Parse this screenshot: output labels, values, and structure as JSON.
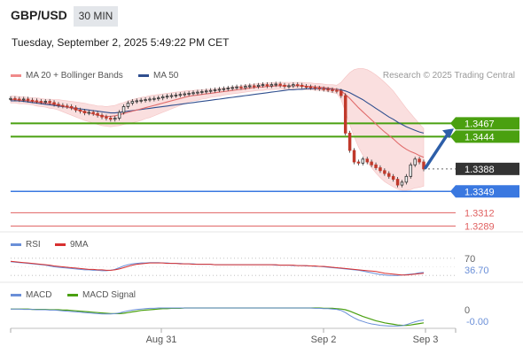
{
  "header": {
    "pair": "GBP/USD",
    "timeframe": "30 MIN",
    "timestamp": "Tuesday, September 2, 2025 5:49:22 PM CET"
  },
  "legend": {
    "ma20": "MA 20 + Bollinger Bands",
    "ma50": "MA 50",
    "credit": "Research © 2025 Trading Central"
  },
  "colors": {
    "ma20": "#e06a6a",
    "ma50": "#2f4f8f",
    "band_fill": "#fadada",
    "resistance": "#4aa010",
    "support_blue": "#3a78e0",
    "support_red": "#e06060",
    "price_tag": "#333333",
    "candle_up": "#2c2c2c",
    "candle_down": "#c0392b",
    "rsi": "#6a8fd8",
    "rsi_ma": "#d83030",
    "macd": "#6a8fd8",
    "macd_signal": "#4aa010",
    "arrow": "#2d5ea8"
  },
  "indicators": {
    "rsi_label": "RSI",
    "rsi_ma_label": "9MA",
    "rsi_level": "70",
    "rsi_value": "36.70",
    "macd_label": "MACD",
    "macd_signal_label": "MACD Signal",
    "macd_zero": "0",
    "macd_value": "-0.00"
  },
  "chart_data": {
    "type": "candlestick",
    "price_min": 1.3285,
    "price_max": 1.3535,
    "levels": [
      {
        "price": 1.3467,
        "label": "1.3467",
        "kind": "resistance"
      },
      {
        "price": 1.3444,
        "label": "1.3444",
        "kind": "resistance"
      },
      {
        "price": 1.3388,
        "label": "1.3388",
        "kind": "current"
      },
      {
        "price": 1.3349,
        "label": "1.3349",
        "kind": "support"
      },
      {
        "price": 1.3312,
        "label": "1.3312",
        "kind": "support"
      },
      {
        "price": 1.3289,
        "label": "1.3289",
        "kind": "support"
      }
    ],
    "x_ticks": [
      "Aug 31",
      "Sep 2",
      "Sep 3"
    ],
    "closes": [
      1.351,
      1.3509,
      1.3508,
      1.3509,
      1.3507,
      1.3506,
      1.3505,
      1.3504,
      1.3505,
      1.3503,
      1.35,
      1.3498,
      1.3497,
      1.3496,
      1.3494,
      1.349,
      1.3488,
      1.3485,
      1.3486,
      1.3484,
      1.3481,
      1.3478,
      1.3476,
      1.3474,
      1.3476,
      1.3486,
      1.3496,
      1.3502,
      1.3505,
      1.3506,
      1.3507,
      1.3508,
      1.3509,
      1.351,
      1.3511,
      1.3513,
      1.3514,
      1.3515,
      1.3516,
      1.3517,
      1.3518,
      1.3519,
      1.352,
      1.3521,
      1.3522,
      1.3523,
      1.3524,
      1.3525,
      1.3526,
      1.3527,
      1.3528,
      1.3529,
      1.353,
      1.3529,
      1.3531,
      1.3532,
      1.3531,
      1.3533,
      1.3534,
      1.3532,
      1.3534,
      1.3535,
      1.3533,
      1.3531,
      1.3532,
      1.3534,
      1.3533,
      1.3531,
      1.353,
      1.3529,
      1.3528,
      1.3527,
      1.3526,
      1.3525,
      1.3524,
      1.3523,
      1.3515,
      1.345,
      1.342,
      1.34,
      1.3398,
      1.3405,
      1.34,
      1.3395,
      1.339,
      1.3385,
      1.338,
      1.3375,
      1.337,
      1.336,
      1.3365,
      1.3375,
      1.3395,
      1.3405,
      1.34,
      1.3388
    ],
    "ma50": [
      1.3506,
      1.3506,
      1.3506,
      1.3505,
      1.3504,
      1.3503,
      1.3502,
      1.3501,
      1.35,
      1.3499,
      1.3498,
      1.3497,
      1.3496,
      1.3495,
      1.3494,
      1.3493,
      1.3492,
      1.3491,
      1.349,
      1.3489,
      1.3488,
      1.3487,
      1.3486,
      1.3485,
      1.3485,
      1.3486,
      1.3487,
      1.3488,
      1.3489,
      1.349,
      1.3491,
      1.3492,
      1.3493,
      1.3494,
      1.3495,
      1.3496,
      1.3497,
      1.3498,
      1.3499,
      1.35,
      1.3501,
      1.3502,
      1.3503,
      1.3504,
      1.3505,
      1.3506,
      1.3507,
      1.3508,
      1.3509,
      1.351,
      1.3511,
      1.3512,
      1.3513,
      1.3514,
      1.3515,
      1.3516,
      1.3517,
      1.3518,
      1.3519,
      1.352,
      1.3521,
      1.3522,
      1.3523,
      1.3524,
      1.3525,
      1.3525,
      1.3526,
      1.3526,
      1.3527,
      1.3527,
      1.3527,
      1.3527,
      1.3527,
      1.3527,
      1.3526,
      1.3526,
      1.3525,
      1.3523,
      1.352,
      1.3516,
      1.3512,
      1.3508,
      1.3503,
      1.3498,
      1.3493,
      1.3488,
      1.3483,
      1.3478,
      1.3474,
      1.3469,
      1.3465,
      1.3461,
      1.3458,
      1.3455,
      1.3452,
      1.345
    ],
    "ma20": [
      1.3508,
      1.3508,
      1.3507,
      1.3507,
      1.3506,
      1.3505,
      1.3504,
      1.3503,
      1.3502,
      1.3501,
      1.35,
      1.3499,
      1.3497,
      1.3495,
      1.3493,
      1.3491,
      1.3489,
      1.3487,
      1.3485,
      1.3483,
      1.3481,
      1.348,
      1.3479,
      1.3479,
      1.348,
      1.3482,
      1.3484,
      1.3486,
      1.3488,
      1.349,
      1.3492,
      1.3494,
      1.3496,
      1.3498,
      1.35,
      1.3502,
      1.3504,
      1.3506,
      1.3508,
      1.351,
      1.3512,
      1.3514,
      1.3515,
      1.3516,
      1.3517,
      1.3518,
      1.3519,
      1.352,
      1.3521,
      1.3522,
      1.3523,
      1.3524,
      1.3525,
      1.3526,
      1.3527,
      1.3528,
      1.3529,
      1.353,
      1.353,
      1.3531,
      1.3531,
      1.3532,
      1.3532,
      1.3532,
      1.3532,
      1.3532,
      1.3532,
      1.3532,
      1.3531,
      1.3531,
      1.353,
      1.353,
      1.3529,
      1.3528,
      1.3527,
      1.3526,
      1.3523,
      1.3517,
      1.351,
      1.3502,
      1.3494,
      1.3487,
      1.348,
      1.3473,
      1.3466,
      1.3459,
      1.3452,
      1.3446,
      1.344,
      1.3433,
      1.3427,
      1.3422,
      1.3418,
      1.3415,
      1.3411,
      1.3408
    ],
    "band_width": [
      0.0006,
      0.0006,
      0.0006,
      0.0006,
      0.0006,
      0.0006,
      0.0007,
      0.0007,
      0.0007,
      0.0008,
      0.0008,
      0.0009,
      0.001,
      0.0011,
      0.0012,
      0.0013,
      0.0014,
      0.0015,
      0.0015,
      0.0016,
      0.0016,
      0.0017,
      0.0017,
      0.0018,
      0.0018,
      0.0019,
      0.0019,
      0.002,
      0.002,
      0.002,
      0.002,
      0.0019,
      0.0019,
      0.0018,
      0.0017,
      0.0016,
      0.0015,
      0.0014,
      0.0013,
      0.0012,
      0.0011,
      0.001,
      0.0009,
      0.0009,
      0.0008,
      0.0008,
      0.0007,
      0.0007,
      0.0007,
      0.0006,
      0.0006,
      0.0006,
      0.0006,
      0.0006,
      0.0006,
      0.0006,
      0.0006,
      0.0006,
      0.0006,
      0.0006,
      0.0006,
      0.0006,
      0.0006,
      0.0006,
      0.0006,
      0.0006,
      0.0006,
      0.0006,
      0.0006,
      0.0006,
      0.0006,
      0.0006,
      0.0006,
      0.0006,
      0.0007,
      0.0007,
      0.0015,
      0.003,
      0.0045,
      0.0058,
      0.0068,
      0.0075,
      0.008,
      0.0083,
      0.0085,
      0.0086,
      0.0086,
      0.0085,
      0.0083,
      0.008,
      0.0076,
      0.0071,
      0.0066,
      0.006,
      0.0055,
      0.005
    ],
    "rsi": [
      62,
      61,
      60,
      59,
      58,
      57,
      56,
      55,
      54,
      52,
      50,
      49,
      48,
      47,
      46,
      45,
      44,
      43,
      43,
      42,
      42,
      41,
      41,
      42,
      44,
      48,
      52,
      55,
      57,
      58,
      59,
      59,
      60,
      60,
      60,
      59,
      59,
      58,
      58,
      58,
      57,
      57,
      57,
      56,
      56,
      56,
      56,
      55,
      55,
      55,
      55,
      55,
      55,
      55,
      55,
      55,
      55,
      55,
      55,
      55,
      55,
      54,
      54,
      54,
      54,
      53,
      53,
      53,
      52,
      52,
      51,
      51,
      50,
      49,
      48,
      47,
      46,
      45,
      44,
      43,
      42,
      40,
      38,
      36,
      34,
      32,
      31,
      30,
      30,
      30,
      31,
      32,
      33,
      34,
      36,
      36.7
    ],
    "rsi_ma": [
      63,
      62,
      61,
      60,
      59,
      58,
      57,
      56,
      55,
      54,
      52,
      51,
      50,
      49,
      48,
      47,
      46,
      45,
      44,
      44,
      43,
      43,
      42,
      42,
      43,
      45,
      48,
      51,
      54,
      56,
      57,
      58,
      59,
      59,
      59,
      59,
      58,
      58,
      58,
      57,
      57,
      57,
      56,
      56,
      56,
      56,
      56,
      55,
      55,
      55,
      55,
      55,
      55,
      55,
      55,
      55,
      55,
      55,
      55,
      55,
      55,
      55,
      54,
      54,
      54,
      54,
      53,
      53,
      53,
      52,
      52,
      51,
      51,
      50,
      49,
      48,
      47,
      46,
      45,
      44,
      43,
      42,
      41,
      40,
      39,
      37,
      35,
      34,
      33,
      32,
      31,
      31,
      32,
      33,
      34,
      35
    ],
    "rsi_range": [
      20,
      80
    ],
    "macd": [
      0.0012,
      0.0012,
      0.0012,
      0.0011,
      0.0011,
      0.0011,
      0.001,
      0.001,
      0.001,
      0.0009,
      0.0009,
      0.0008,
      0.0007,
      0.0006,
      0.0005,
      0.0004,
      0.0003,
      0.0002,
      0.0001,
      0.0,
      -0.0001,
      -0.0002,
      -0.0002,
      -0.0002,
      -0.0001,
      0.0001,
      0.0004,
      0.0007,
      0.0009,
      0.0011,
      0.0012,
      0.0013,
      0.0014,
      0.0014,
      0.0015,
      0.0015,
      0.0015,
      0.0015,
      0.0015,
      0.0015,
      0.0015,
      0.0015,
      0.0015,
      0.0015,
      0.0015,
      0.0015,
      0.0015,
      0.0015,
      0.0015,
      0.0015,
      0.0015,
      0.0015,
      0.0015,
      0.0015,
      0.0015,
      0.0015,
      0.0015,
      0.0015,
      0.0015,
      0.0015,
      0.0015,
      0.0015,
      0.0015,
      0.0015,
      0.0015,
      0.0015,
      0.0015,
      0.0015,
      0.0015,
      0.0015,
      0.0014,
      0.0014,
      0.0013,
      0.0013,
      0.0012,
      0.0011,
      0.0008,
      0.0002,
      -0.0006,
      -0.0013,
      -0.0019,
      -0.0023,
      -0.0027,
      -0.003,
      -0.0032,
      -0.0034,
      -0.0035,
      -0.0036,
      -0.0036,
      -0.0036,
      -0.0035,
      -0.0032,
      -0.0028,
      -0.0024,
      -0.0021,
      -0.0019
    ],
    "macd_signal": [
      0.0012,
      0.0012,
      0.0012,
      0.0012,
      0.0012,
      0.0011,
      0.0011,
      0.0011,
      0.0011,
      0.001,
      0.001,
      0.001,
      0.0009,
      0.0009,
      0.0008,
      0.0007,
      0.0006,
      0.0005,
      0.0004,
      0.0003,
      0.0002,
      0.0001,
      0.0,
      -0.0001,
      -0.0001,
      -0.0001,
      0.0,
      0.0002,
      0.0004,
      0.0006,
      0.0008,
      0.0009,
      0.001,
      0.0011,
      0.0012,
      0.0013,
      0.0013,
      0.0014,
      0.0014,
      0.0014,
      0.0015,
      0.0015,
      0.0015,
      0.0015,
      0.0015,
      0.0015,
      0.0015,
      0.0015,
      0.0015,
      0.0015,
      0.0015,
      0.0015,
      0.0015,
      0.0015,
      0.0015,
      0.0015,
      0.0015,
      0.0015,
      0.0015,
      0.0015,
      0.0015,
      0.0015,
      0.0015,
      0.0015,
      0.0015,
      0.0015,
      0.0015,
      0.0015,
      0.0015,
      0.0015,
      0.0015,
      0.0015,
      0.0014,
      0.0014,
      0.0014,
      0.0013,
      0.0012,
      0.001,
      0.0006,
      0.0001,
      -0.0004,
      -0.0009,
      -0.0013,
      -0.0017,
      -0.0021,
      -0.0024,
      -0.0027,
      -0.0029,
      -0.0031,
      -0.0033,
      -0.0034,
      -0.0034,
      -0.0033,
      -0.0031,
      -0.0029,
      -0.0027
    ],
    "macd_range": [
      -0.0045,
      0.003
    ]
  }
}
